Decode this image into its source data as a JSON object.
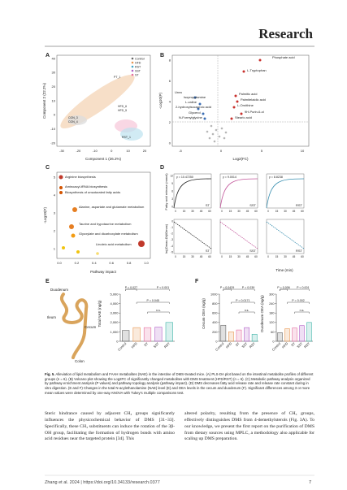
{
  "header": {
    "journal": "Research"
  },
  "figure": {
    "a": {
      "label": "A",
      "x_label": "Component 1 (26.2%)",
      "y_label": "Component 2 (22.2%)",
      "x_ticks": [
        "-30",
        "-20",
        "-10",
        "0",
        "10",
        "20"
      ],
      "y_ticks": [
        "40",
        "30",
        "20",
        "10",
        "0",
        "-10",
        "-20"
      ],
      "legend": [
        {
          "name": "Control",
          "color": "#666666"
        },
        {
          "name": "HFD",
          "color": "#e8954f"
        },
        {
          "name": "RST",
          "color": "#3fa7c9"
        },
        {
          "name": "SST",
          "color": "#b05fc7"
        },
        {
          "name": "ST",
          "color": "#e46fa0"
        }
      ],
      "point_labels": [
        "PT_1",
        "HFD_6",
        "HFD_5",
        "CON_3",
        "CON_4",
        "RST_1"
      ]
    },
    "b": {
      "label": "B",
      "x_label": "Log2(FC)",
      "y_label": "-Log10(P)",
      "x_ticks": [
        "-5",
        "0",
        "5",
        "10"
      ],
      "y_ticks": [
        "8",
        "6",
        "4",
        "2",
        "0"
      ],
      "up_labels": [
        "Phosphate acid",
        "L-Tryptophan",
        "Palmitic acid",
        "Palmitelaidic acid",
        "L-Ornithine",
        "9H-Purin-6-ol",
        "Stearic acid"
      ],
      "down_labels": [
        "Urea",
        "Isopropylamine",
        "L-valine",
        "2-hydroxyisocaproic acid",
        "Glycerol",
        "N-Formylglycine"
      ]
    },
    "c": {
      "label": "C",
      "x_label": "Pathway impact",
      "y_label": "-Log10(P)",
      "x_ticks": [
        "0.0",
        "0.2",
        "0.4",
        "0.6",
        "0.8",
        "1.0"
      ],
      "y_ticks": [
        "5",
        "4",
        "3",
        "2",
        "1"
      ],
      "pathways": [
        "Arginine biosynthesis",
        "Aminoacyl-tRNA biosynthesis",
        "Biosynthesis of unsaturated fatty acids",
        "Alanine, aspartate and glutamate metabolism",
        "Taurine and hypotaurine metabolism",
        "Glyoxylate and dicarboxylate metabolism",
        "Linoleic acid metabolism"
      ]
    },
    "d": {
      "label": "D",
      "y_label_top": "Fatty acid release (mmol)",
      "y_label_bottom": "ln((Ωmax-Ωt)/Ωmax)",
      "x_label": "Time (min)",
      "groups": [
        "ST",
        "SST",
        "RST"
      ],
      "fit_labels": [
        "y = 10.47250",
        "y = 9.0014",
        "y = 8.8238"
      ],
      "x_ticks": [
        "0",
        "15",
        "30",
        "45",
        "60"
      ],
      "y_ticks_top": [
        "12",
        "9",
        "6",
        "3",
        "0"
      ],
      "y_ticks_bottom": [
        "0",
        "-1",
        "-2",
        "-3",
        "-4",
        "-5"
      ]
    },
    "e": {
      "label": "E",
      "organs": [
        "Duodenum",
        "Ileum",
        "Cecum",
        "Colon"
      ],
      "y_label": "Total NAE (ng/g)",
      "categories": [
        "Control",
        "HFD",
        "ST",
        "SST",
        "RST"
      ],
      "colors": [
        "#666666",
        "#e8954f",
        "#e46fa0",
        "#b05fc7",
        "#3fb5a8"
      ],
      "values": [
        1150,
        1450,
        1450,
        1500,
        2000
      ],
      "ylim": [
        0,
        5000
      ],
      "yticks": [
        0,
        {
          "value": 1000,
          "label": "1,000"
        },
        {
          "value": 2000,
          "label": "2,000"
        },
        {
          "value": 3000,
          "label": "3,000"
        },
        {
          "value": 4000,
          "label": "4,000"
        },
        {
          "value": 5000,
          "label": "5,000"
        }
      ],
      "p_values": [
        "P = 0.027",
        "P < 0.001",
        "P = 0.045",
        "n.s."
      ]
    },
    "f": {
      "label": "F",
      "categories": [
        "Control",
        "HFD",
        "ST",
        "SST",
        "RST"
      ],
      "colors": [
        "#666666",
        "#e8954f",
        "#e46fa0",
        "#b05fc7",
        "#3fb5a8"
      ],
      "charts": [
        {
          "y_label": "Cecum OEA (ng/g)",
          "values": [
            340,
            200,
            240,
            290,
            150
          ],
          "ylim": [
            0,
            1000
          ],
          "yticks": [
            0,
            200,
            400,
            600,
            800,
            1000
          ],
          "p_values": [
            "P = 0.0429",
            "P = 0.039",
            "P = 0.0171",
            "n.s."
          ]
        },
        {
          "y_label": "Duodenum OEA (ng/g)",
          "values": [
            55,
            80,
            85,
            100,
            120
          ],
          "ylim": [
            0,
            300
          ],
          "yticks": [
            0,
            60,
            120,
            180,
            240,
            300
          ],
          "p_values": [
            "P = 0.006",
            "P < 0.001",
            "P = 0.002",
            "n.s."
          ]
        }
      ]
    }
  },
  "caption": {
    "lead": "Fig. 5.",
    "text": "Alleviation of lipid metabolism and FAAH metabolites (NAE) in the intestine of DMS-treated mice. (A) PLS-DA plot based on the intestinal metabolite profiles of different groups (n = 6). (B) Volcano plot showing the Log2FC of significantly changed metabolites with DMS treatment (HFD/RST) (n = 6). (C) Metabolic pathway analysis organized by pathway enrichment analysis (P values) and pathway topology analysis (pathway impact). (D) DMS decreases fatty acid release rate and release rate constant during in vitro digestion. (E and F) Changes in the total N-acylethanolamine (NAE) level (E) and OEA levels in the cecum and duodenum (F). Significant differences among 3 or more mean values were determined by one-way ANOVA with Tukey's multiple comparisons test."
  },
  "body": {
    "left": "Steric hindrance caused by adjacent CH₃ groups significantly influences the physicochemical behavior of DMS [31–33]. Specifically, these CH₃ substituents can induce the rotation of the 3β-OH group, facilitating the formation of hydrogen bonds with amino acid residues near the targeted protein [34]. This",
    "right": "altered polarity, resulting from the presence of CH₃ groups, effectively distinguishes DMS from 4-demethylsterols (Fig. 3A). To our knowledge, we present the first report on the purification of DMS from dietary sources using MPLC, a methodology also applicable for scaling up DMS preparation."
  },
  "footer": {
    "citation": "Zhang et al. 2024 | https://doi.org/10.34133/research.0377",
    "page": "7"
  }
}
